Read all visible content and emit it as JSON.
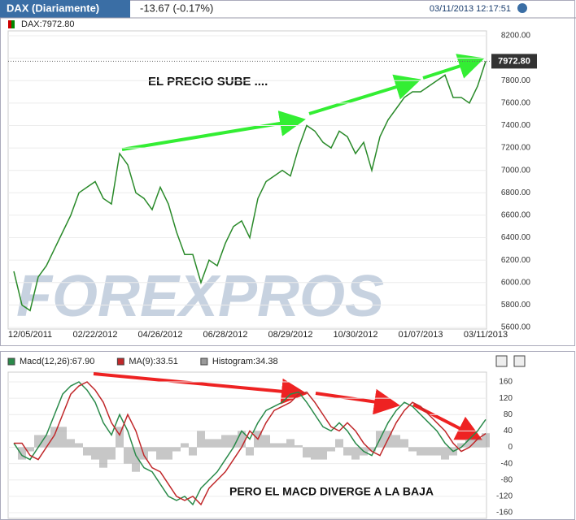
{
  "chart_data": [
    {
      "type": "line",
      "header": "DAX (Diariamente)",
      "change": "-13.67 (-0.17%)",
      "timestamp": "03/11/2013 12:17:51",
      "legend": "DAX:7972.80",
      "last_label": "7972.80",
      "annotation": "EL PRECIO SUBE ....",
      "watermark": "FOREXPROS",
      "categories": [
        null,
        null,
        "12/05/2011",
        null,
        null,
        null,
        null,
        null,
        null,
        null,
        "02/22/2012",
        null,
        null,
        null,
        null,
        null,
        null,
        null,
        "04/26/2012",
        null,
        null,
        null,
        null,
        null,
        null,
        null,
        "06/28/2012",
        null,
        null,
        null,
        null,
        null,
        null,
        null,
        "08/29/2012",
        null,
        null,
        null,
        null,
        null,
        null,
        null,
        "10/30/2012",
        null,
        null,
        null,
        null,
        null,
        null,
        null,
        "01/07/2013",
        null,
        null,
        null,
        null,
        null,
        null,
        null,
        "03/11/2013"
      ],
      "series": [
        {
          "name": "DAX",
          "color": "#2a8a2a",
          "values": [
            6100,
            5800,
            5750,
            6050,
            6150,
            6300,
            6450,
            6600,
            6800,
            6850,
            6900,
            6750,
            6700,
            7150,
            7050,
            6800,
            6750,
            6650,
            6850,
            6700,
            6450,
            6250,
            6250,
            6000,
            6200,
            6150,
            6350,
            6500,
            6550,
            6400,
            6750,
            6900,
            6950,
            7000,
            6950,
            7200,
            7400,
            7350,
            7250,
            7200,
            7350,
            7300,
            7150,
            7250,
            7000,
            7300,
            7450,
            7550,
            7650,
            7700,
            7700,
            7750,
            7800,
            7850,
            7650,
            7650,
            7600,
            7750,
            7972.8
          ]
        }
      ],
      "ylim": [
        5600,
        8200
      ],
      "yticks": [
        {
          "value": 5600,
          "label": "5600.00"
        },
        {
          "value": 5800,
          "label": "5800.00"
        },
        {
          "value": 6000,
          "label": "6000.00"
        },
        {
          "value": 6200,
          "label": "6200.00"
        },
        {
          "value": 6400,
          "label": "6400.00"
        },
        {
          "value": 6600,
          "label": "6600.00"
        },
        {
          "value": 6800,
          "label": "6800.00"
        },
        {
          "value": 7000,
          "label": "7000.00"
        },
        {
          "value": 7200,
          "label": "7200.00"
        },
        {
          "value": 7400,
          "label": "7400.00"
        },
        {
          "value": 7600,
          "label": "7600.00"
        },
        {
          "value": 7800,
          "label": "7800.00"
        },
        {
          "value": 8000,
          "label": "8000.00"
        },
        {
          "value": 8200,
          "label": "8200.00"
        }
      ],
      "grid": true
    },
    {
      "type": "line",
      "annotation": "PERO EL MACD DIVERGE A LA BAJA",
      "series": [
        {
          "name": "Macd(12,26):67.90",
          "color": "#2a8a4a",
          "style": "line",
          "values": [
            10,
            -20,
            -30,
            0,
            30,
            80,
            130,
            150,
            160,
            140,
            110,
            60,
            30,
            80,
            40,
            -20,
            -50,
            -60,
            -90,
            -120,
            -130,
            -120,
            -140,
            -100,
            -80,
            -60,
            -30,
            0,
            40,
            20,
            60,
            90,
            100,
            110,
            130,
            135,
            110,
            80,
            50,
            40,
            60,
            40,
            10,
            -10,
            -20,
            20,
            60,
            90,
            110,
            100,
            80,
            60,
            40,
            10,
            -10,
            0,
            20,
            40,
            67.9
          ]
        },
        {
          "name": "MA(9):33.51",
          "color": "#c0282a",
          "style": "line",
          "values": [
            10,
            10,
            -20,
            -30,
            0,
            30,
            80,
            130,
            150,
            160,
            140,
            110,
            60,
            30,
            80,
            40,
            -20,
            -50,
            -60,
            -90,
            -120,
            -130,
            -120,
            -140,
            -100,
            -80,
            -60,
            -30,
            0,
            40,
            20,
            60,
            90,
            100,
            110,
            130,
            135,
            110,
            80,
            50,
            40,
            60,
            40,
            10,
            -10,
            -20,
            20,
            60,
            90,
            110,
            100,
            80,
            60,
            40,
            10,
            -10,
            0,
            20,
            33.51
          ]
        },
        {
          "name": "Histogram:34.38",
          "color": "#999999",
          "style": "histogram",
          "values": [
            0,
            -30,
            -10,
            30,
            30,
            50,
            50,
            20,
            10,
            -20,
            -30,
            -50,
            -30,
            50,
            -40,
            -60,
            -30,
            -10,
            -30,
            -30,
            -10,
            10,
            -20,
            40,
            20,
            20,
            30,
            30,
            40,
            -20,
            40,
            30,
            10,
            10,
            20,
            5,
            -25,
            -30,
            -30,
            -10,
            20,
            -20,
            -30,
            -20,
            -10,
            40,
            40,
            30,
            20,
            -10,
            -20,
            -20,
            -20,
            -30,
            -20,
            10,
            20,
            20,
            34.38
          ]
        }
      ],
      "ylim": [
        -160,
        160
      ],
      "yticks": [
        -160,
        -120,
        -80,
        -40,
        0,
        40,
        80,
        120,
        160
      ],
      "grid": true
    }
  ]
}
